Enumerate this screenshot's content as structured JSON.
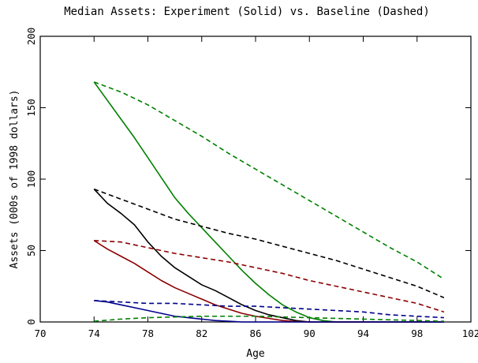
{
  "chart_data": {
    "type": "line",
    "title": "Median Assets:  Experiment (Solid) vs. Baseline (Dashed)",
    "xlabel": "Age",
    "ylabel": "Assets (000s of 1998 dollars)",
    "xlim": [
      70,
      102
    ],
    "ylim": [
      0,
      200
    ],
    "xticks": [
      70,
      74,
      78,
      82,
      86,
      90,
      94,
      98,
      102
    ],
    "yticks": [
      0,
      50,
      100,
      150,
      200
    ],
    "grid": false,
    "series": [
      {
        "color": "#008000",
        "style": "solid",
        "points": [
          [
            74,
            168
          ],
          [
            75,
            155
          ],
          [
            76,
            142
          ],
          [
            77,
            129
          ],
          [
            78,
            115
          ],
          [
            79,
            101
          ],
          [
            80,
            87
          ],
          [
            81,
            76
          ],
          [
            82,
            66
          ],
          [
            83,
            56
          ],
          [
            84,
            46
          ],
          [
            85,
            36
          ],
          [
            86,
            27
          ],
          [
            87,
            19
          ],
          [
            88,
            12
          ],
          [
            89,
            7
          ],
          [
            90,
            3
          ],
          [
            91,
            1
          ],
          [
            92,
            0
          ],
          [
            100,
            0
          ]
        ]
      },
      {
        "color": "#008000",
        "style": "dashed",
        "points": [
          [
            74,
            168
          ],
          [
            76,
            161
          ],
          [
            78,
            152
          ],
          [
            80,
            141
          ],
          [
            82,
            130
          ],
          [
            84,
            118
          ],
          [
            86,
            107
          ],
          [
            88,
            96
          ],
          [
            90,
            85
          ],
          [
            92,
            74
          ],
          [
            94,
            63
          ],
          [
            96,
            52
          ],
          [
            98,
            42
          ],
          [
            100,
            30
          ]
        ]
      },
      {
        "color": "#000000",
        "style": "solid",
        "points": [
          [
            74,
            93
          ],
          [
            75,
            83
          ],
          [
            76,
            76
          ],
          [
            77,
            68
          ],
          [
            78,
            56
          ],
          [
            79,
            46
          ],
          [
            80,
            38
          ],
          [
            81,
            32
          ],
          [
            82,
            26
          ],
          [
            83,
            22
          ],
          [
            84,
            17
          ],
          [
            85,
            12
          ],
          [
            86,
            8
          ],
          [
            87,
            5
          ],
          [
            88,
            3
          ],
          [
            89,
            1
          ],
          [
            90,
            0
          ],
          [
            100,
            0
          ]
        ]
      },
      {
        "color": "#000000",
        "style": "dashed",
        "points": [
          [
            74,
            93
          ],
          [
            76,
            86
          ],
          [
            78,
            79
          ],
          [
            80,
            72
          ],
          [
            82,
            67
          ],
          [
            84,
            62
          ],
          [
            86,
            58
          ],
          [
            88,
            53
          ],
          [
            90,
            48
          ],
          [
            92,
            43
          ],
          [
            94,
            37
          ],
          [
            96,
            31
          ],
          [
            98,
            25
          ],
          [
            100,
            17
          ]
        ]
      },
      {
        "color": "#8B0000",
        "style": "solid",
        "points": [
          [
            74,
            57
          ],
          [
            75,
            51
          ],
          [
            76,
            46
          ],
          [
            77,
            41
          ],
          [
            78,
            35
          ],
          [
            79,
            29
          ],
          [
            80,
            24
          ],
          [
            81,
            20
          ],
          [
            82,
            16
          ],
          [
            83,
            12
          ],
          [
            84,
            9
          ],
          [
            85,
            6
          ],
          [
            86,
            4
          ],
          [
            87,
            2.5
          ],
          [
            88,
            1
          ],
          [
            89,
            0.3
          ],
          [
            90,
            0
          ],
          [
            100,
            0
          ]
        ]
      },
      {
        "color": "#8B0000",
        "style": "dashed",
        "points": [
          [
            74,
            57
          ],
          [
            76,
            56
          ],
          [
            78,
            52
          ],
          [
            80,
            48
          ],
          [
            82,
            45
          ],
          [
            84,
            42
          ],
          [
            86,
            38
          ],
          [
            88,
            34
          ],
          [
            90,
            29
          ],
          [
            92,
            25
          ],
          [
            94,
            21
          ],
          [
            96,
            17
          ],
          [
            98,
            13
          ],
          [
            100,
            7
          ]
        ]
      },
      {
        "color": "#00008B",
        "style": "solid",
        "points": [
          [
            74,
            15
          ],
          [
            75,
            14
          ],
          [
            76,
            12
          ],
          [
            77,
            10
          ],
          [
            78,
            8
          ],
          [
            79,
            6
          ],
          [
            80,
            4
          ],
          [
            81,
            3
          ],
          [
            82,
            2
          ],
          [
            83,
            1
          ],
          [
            84,
            0.5
          ],
          [
            85,
            0
          ],
          [
            100,
            0
          ]
        ]
      },
      {
        "color": "#00008B",
        "style": "dashed",
        "points": [
          [
            74,
            15
          ],
          [
            76,
            14
          ],
          [
            78,
            13
          ],
          [
            80,
            13
          ],
          [
            82,
            12
          ],
          [
            84,
            11
          ],
          [
            86,
            11
          ],
          [
            88,
            10
          ],
          [
            90,
            9
          ],
          [
            92,
            8
          ],
          [
            94,
            7
          ],
          [
            96,
            5
          ],
          [
            98,
            4
          ],
          [
            100,
            3
          ]
        ]
      },
      {
        "color": "#008000",
        "style": "dashed",
        "points": [
          [
            74,
            0.5
          ],
          [
            76,
            2
          ],
          [
            78,
            3
          ],
          [
            80,
            3.5
          ],
          [
            82,
            4
          ],
          [
            84,
            4
          ],
          [
            86,
            4
          ],
          [
            88,
            3.5
          ],
          [
            90,
            3
          ],
          [
            92,
            2.5
          ],
          [
            94,
            2
          ],
          [
            96,
            1.5
          ],
          [
            98,
            1
          ],
          [
            100,
            0.5
          ]
        ]
      }
    ]
  }
}
